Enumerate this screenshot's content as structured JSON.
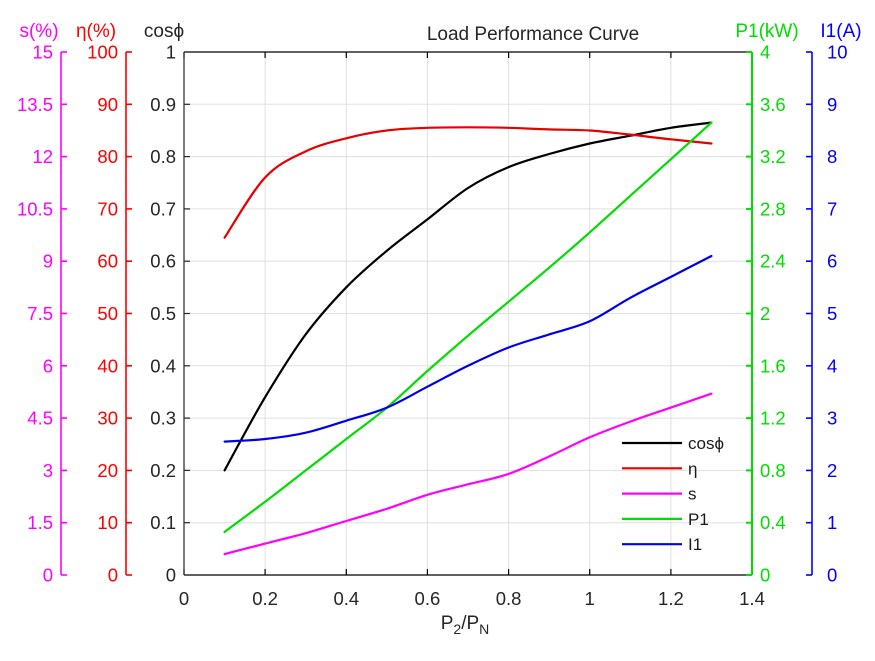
{
  "chart_data": {
    "type": "line",
    "title": "Load Performance Curve",
    "grid": true,
    "x_axis": {
      "label": "P2/PN",
      "label_parts": {
        "base1": "P",
        "sub1": "2",
        "slash": "/",
        "base2": "P",
        "sub2": "N"
      },
      "range": [
        0,
        1.4
      ],
      "tick_values": [
        0,
        0.2,
        0.4,
        0.6,
        0.8,
        1,
        1.2,
        1.4
      ],
      "tick_labels": [
        "0",
        "0.2",
        "0.4",
        "0.6",
        "0.8",
        "1",
        "1.2",
        "1.4"
      ],
      "color": "#262626"
    },
    "y_axes": [
      {
        "id": "s",
        "label": "s(%)",
        "range": [
          0,
          15
        ],
        "side": "left",
        "tick_values": [
          0,
          1.5,
          3,
          4.5,
          6,
          7.5,
          9,
          10.5,
          12,
          13.5,
          15
        ],
        "tick_labels": [
          "0",
          "1.5",
          "3",
          "4.5",
          "6",
          "7.5",
          "9",
          "10.5",
          "12",
          "13.5",
          "15"
        ],
        "color": "#ff00ff"
      },
      {
        "id": "eta",
        "label": "η(%)",
        "range": [
          0,
          100
        ],
        "side": "left",
        "tick_values": [
          0,
          10,
          20,
          30,
          40,
          50,
          60,
          70,
          80,
          90,
          100
        ],
        "tick_labels": [
          "0",
          "10",
          "20",
          "30",
          "40",
          "50",
          "60",
          "70",
          "80",
          "90",
          "100"
        ],
        "color": "#ff0000"
      },
      {
        "id": "cos",
        "label": "cosϕ",
        "range": [
          0,
          1
        ],
        "side": "left",
        "tick_values": [
          0,
          0.1,
          0.2,
          0.3,
          0.4,
          0.5,
          0.6,
          0.7,
          0.8,
          0.9,
          1
        ],
        "tick_labels": [
          "0",
          "0.1",
          "0.2",
          "0.3",
          "0.4",
          "0.5",
          "0.6",
          "0.7",
          "0.8",
          "0.9",
          "1"
        ],
        "color": "#262626"
      },
      {
        "id": "p1",
        "label": "P1(kW)",
        "range": [
          0,
          4
        ],
        "side": "right",
        "tick_values": [
          0,
          0.4,
          0.8,
          1.2,
          1.6,
          2,
          2.4,
          2.8,
          3.2,
          3.6,
          4
        ],
        "tick_labels": [
          "0",
          "0.4",
          "0.8",
          "1.2",
          "1.6",
          "2",
          "2.4",
          "2.8",
          "3.2",
          "3.6",
          "4"
        ],
        "color": "#00dd00"
      },
      {
        "id": "i1",
        "label": "I1(A)",
        "range": [
          0,
          10
        ],
        "side": "right",
        "tick_values": [
          0,
          1,
          2,
          3,
          4,
          5,
          6,
          7,
          8,
          9,
          10
        ],
        "tick_labels": [
          "0",
          "1",
          "2",
          "3",
          "4",
          "5",
          "6",
          "7",
          "8",
          "9",
          "10"
        ],
        "color": "#0000ff"
      }
    ],
    "x": [
      0.1,
      0.2,
      0.3,
      0.4,
      0.5,
      0.6,
      0.7,
      0.8,
      0.9,
      1.0,
      1.1,
      1.2,
      1.3
    ],
    "series": [
      {
        "name": "cosϕ",
        "axis": "cos",
        "color": "#000000",
        "values": [
          0.2,
          0.34,
          0.46,
          0.55,
          0.62,
          0.68,
          0.74,
          0.78,
          0.805,
          0.825,
          0.84,
          0.855,
          0.865
        ]
      },
      {
        "name": "η",
        "axis": "eta",
        "color": "#e60000",
        "values": [
          64.5,
          76,
          81,
          83.5,
          85,
          85.5,
          85.6,
          85.5,
          85.2,
          85,
          84.2,
          83.3,
          82.5
        ]
      },
      {
        "name": "s",
        "axis": "s",
        "color": "#ff00ff",
        "values": [
          0.6,
          0.9,
          1.2,
          1.55,
          1.9,
          2.3,
          2.6,
          2.9,
          3.4,
          3.95,
          4.4,
          4.8,
          5.2
        ]
      },
      {
        "name": "P1",
        "axis": "p1",
        "color": "#00dd00",
        "values": [
          0.33,
          0.56,
          0.8,
          1.04,
          1.28,
          1.56,
          1.83,
          2.09,
          2.35,
          2.62,
          2.9,
          3.18,
          3.46
        ]
      },
      {
        "name": "I1",
        "axis": "i1",
        "color": "#0000ee",
        "values": [
          2.55,
          2.6,
          2.72,
          2.95,
          3.2,
          3.6,
          4.0,
          4.35,
          4.6,
          4.85,
          5.3,
          5.7,
          6.1
        ]
      }
    ],
    "legend": {
      "position": "lower-right",
      "entries": [
        "cosϕ",
        "η",
        "s",
        "P1",
        "I1"
      ]
    }
  }
}
